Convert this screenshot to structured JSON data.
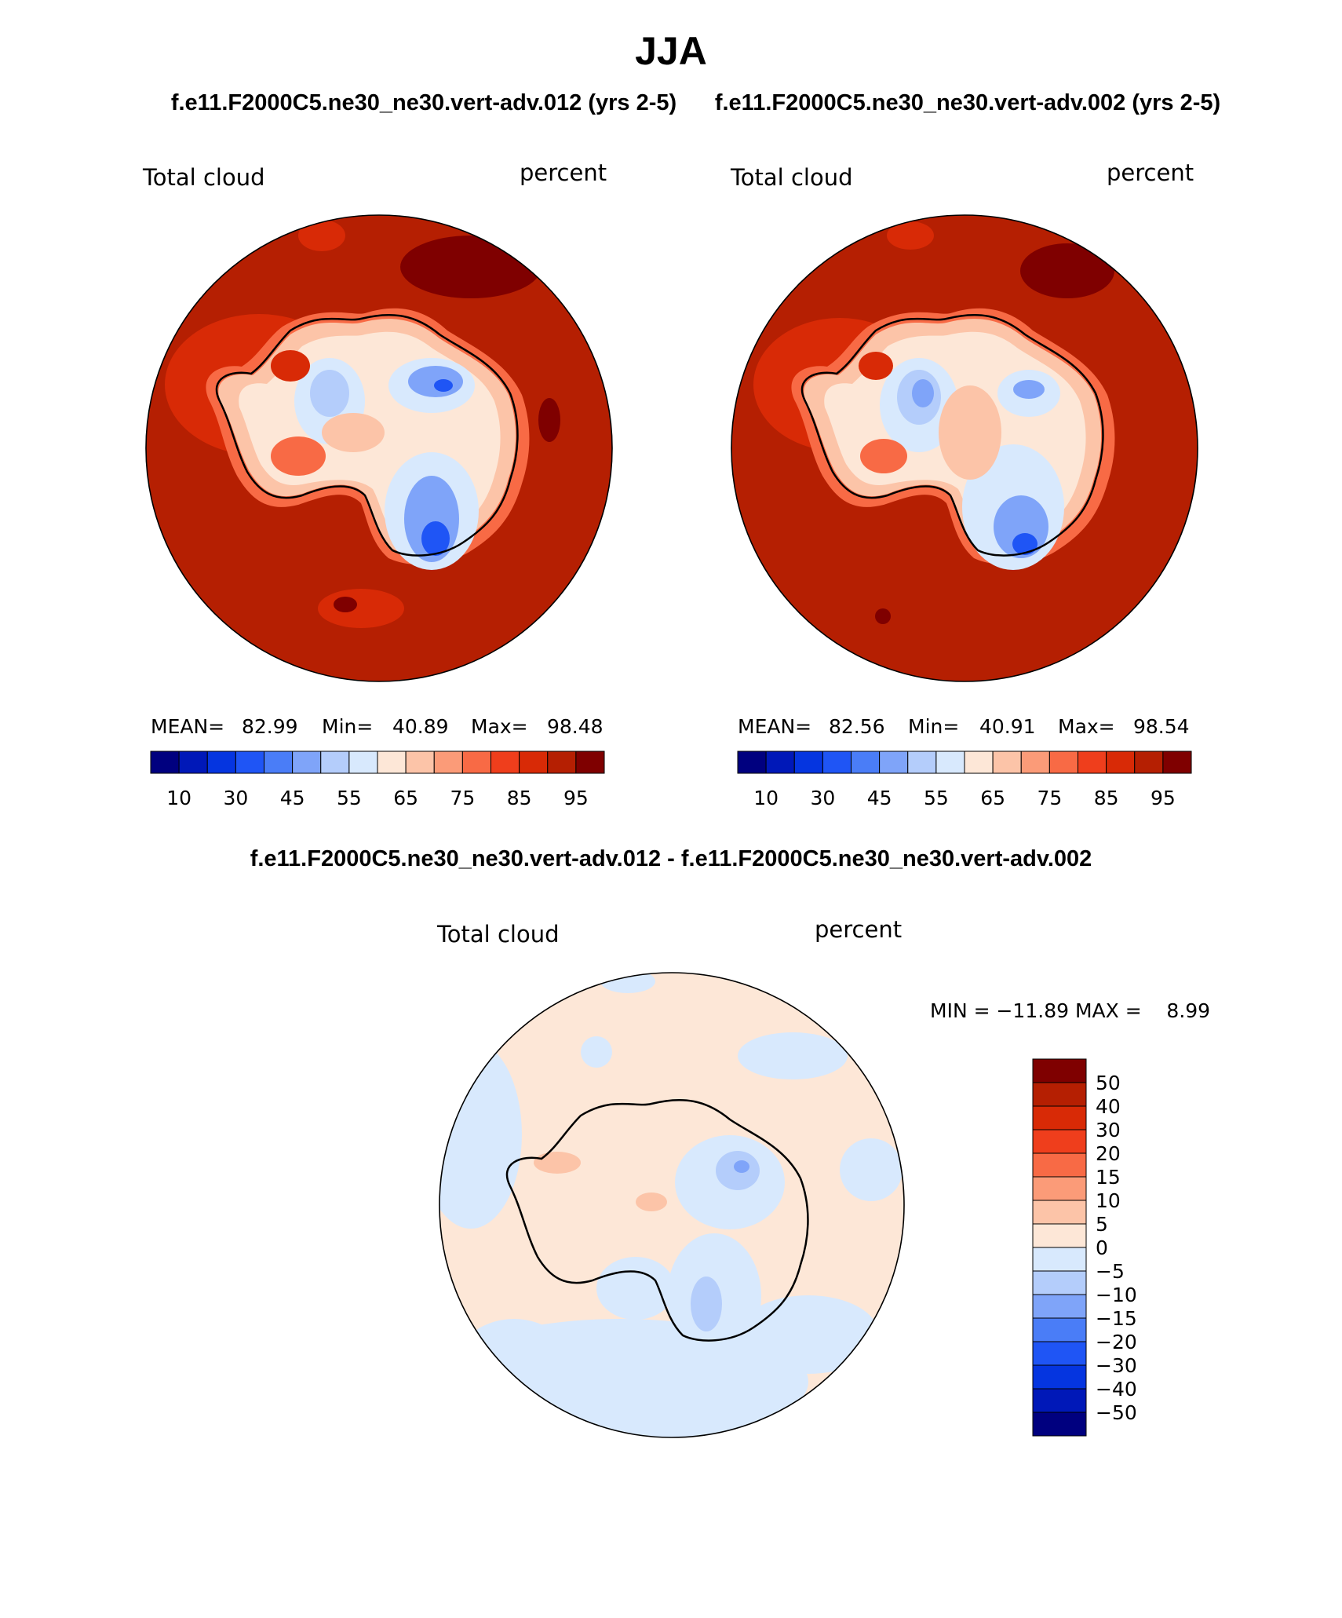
{
  "title": "JJA",
  "subtitle_left": "f.e11.F2000C5.ne30_ne30.vert-adv.012 (yrs 2-5)",
  "subtitle_right": "f.e11.F2000C5.ne30_ne30.vert-adv.002 (yrs 2-5)",
  "diff_title": "f.e11.F2000C5.ne30_ne30.vert-adv.012 - f.e11.F2000C5.ne30_ne30.vert-adv.002",
  "panels": [
    {
      "variable": "Total cloud",
      "units": "percent",
      "stats": {
        "mean_label": "MEAN=",
        "mean": "82.99",
        "min_label": "Min=",
        "min": "40.89",
        "max_label": "Max=",
        "max": "98.48"
      }
    },
    {
      "variable": "Total cloud",
      "units": "percent",
      "stats": {
        "mean_label": "MEAN=",
        "mean": "82.56",
        "min_label": "Min=",
        "min": "40.91",
        "max_label": "Max=",
        "max": "98.54"
      }
    }
  ],
  "diff_panel": {
    "variable": "Total cloud",
    "units": "percent",
    "stats_text": "MIN = −11.89 MAX =    8.99"
  },
  "colorbar_abs": {
    "colors": [
      "#00007f",
      "#0018b8",
      "#0535e0",
      "#1f55f5",
      "#4a7df7",
      "#7fa4f9",
      "#b4cdfb",
      "#d8e9fd",
      "#fde7d7",
      "#fcc4a8",
      "#fb9b78",
      "#f86a45",
      "#ef3e1c",
      "#d82a06",
      "#b51f02",
      "#7f0000"
    ],
    "labels": [
      "10",
      "30",
      "45",
      "55",
      "65",
      "75",
      "85",
      "95"
    ]
  },
  "colorbar_diff": {
    "colors": [
      "#7f0000",
      "#b51f02",
      "#d82a06",
      "#ef3e1c",
      "#f86a45",
      "#fb9b78",
      "#fcc4a8",
      "#fde7d7",
      "#d8e9fd",
      "#b4cdfb",
      "#7fa4f9",
      "#4a7df7",
      "#1f55f5",
      "#0535e0",
      "#0018b8",
      "#00007f"
    ],
    "labels": [
      "50",
      "40",
      "30",
      "20",
      "15",
      "10",
      "5",
      "0",
      "−5",
      "−10",
      "−15",
      "−20",
      "−30",
      "−40",
      "−50"
    ]
  }
}
